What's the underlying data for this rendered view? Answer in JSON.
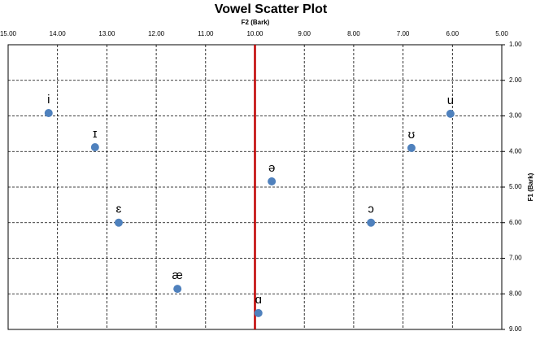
{
  "chart_data": {
    "type": "scatter",
    "title": "Vowel Scatter Plot",
    "x_label": "F2 (Bark)",
    "y_label": "F1 (Bark)",
    "labels": [
      "i",
      "ɪ",
      "ɛ",
      "æ",
      "ɑ",
      "ə",
      "ɔ",
      "ʊ",
      "u"
    ],
    "x": [
      14.18,
      13.24,
      12.76,
      11.57,
      9.93,
      9.66,
      7.65,
      6.83,
      6.04
    ],
    "y": [
      2.92,
      3.88,
      6.0,
      7.86,
      8.54,
      4.84,
      6.0,
      3.9,
      2.94
    ],
    "color": "#4f81bd",
    "vline": 10,
    "vline_color": "#c00000",
    "xlim": [
      15,
      5
    ],
    "ylim": [
      1,
      9
    ],
    "xticks": [
      {
        "value": 15,
        "label": "15.00"
      },
      {
        "value": 14,
        "label": "14.00"
      },
      {
        "value": 13,
        "label": "13.00"
      },
      {
        "value": 12,
        "label": "12.00"
      },
      {
        "value": 11,
        "label": "11.00"
      },
      {
        "value": 10,
        "label": "10.00"
      },
      {
        "value": 9,
        "label": "9.00"
      },
      {
        "value": 8,
        "label": "8.00"
      },
      {
        "value": 7,
        "label": "7.00"
      },
      {
        "value": 6,
        "label": "6.00"
      },
      {
        "value": 5,
        "label": "5.00"
      }
    ],
    "yticks": [
      {
        "value": 1,
        "label": "1.00"
      },
      {
        "value": 2,
        "label": "2.00"
      },
      {
        "value": 3,
        "label": "3.00"
      },
      {
        "value": 4,
        "label": "4.00"
      },
      {
        "value": 5,
        "label": "5.00"
      },
      {
        "value": 6,
        "label": "6.00"
      },
      {
        "value": 7,
        "label": "7.00"
      },
      {
        "value": 8,
        "label": "8.00"
      },
      {
        "value": 9,
        "label": "9.00"
      }
    ],
    "grid": true
  }
}
